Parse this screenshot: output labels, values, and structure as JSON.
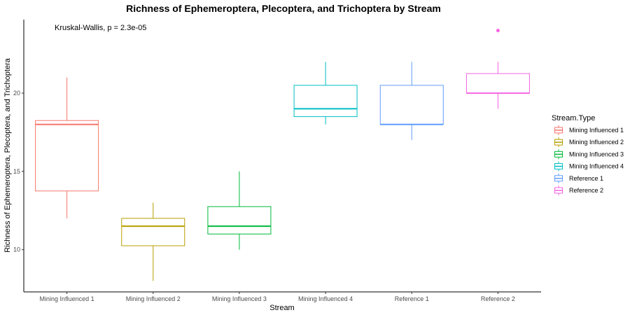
{
  "chart_data": {
    "type": "box",
    "title": "Richness of Ephemeroptera, Plecoptera, and Trichoptera by Stream",
    "xlabel": "Stream",
    "ylabel": "Richness of Ephemeroptera, Plecoptera, and Trichoptera",
    "annotation": "Kruskal-Wallis, p = 2.3e-05",
    "ylim": [
      7.3,
      24.7
    ],
    "yticks": [
      10,
      15,
      20
    ],
    "grid": false,
    "legend": {
      "title": "Stream.Type",
      "placement": "right"
    },
    "series": [
      {
        "name": "Mining Influenced 1",
        "color": "#F8766D",
        "min": 12,
        "q1": 13.75,
        "median": 18,
        "q3": 18.25,
        "max": 21,
        "outliers": []
      },
      {
        "name": "Mining Influenced 2",
        "color": "#B79F00",
        "min": 8,
        "q1": 10.25,
        "median": 11.5,
        "q3": 12,
        "max": 13,
        "outliers": []
      },
      {
        "name": "Mining Influenced 3",
        "color": "#00BA38",
        "min": 10,
        "q1": 11,
        "median": 11.5,
        "q3": 12.75,
        "max": 15,
        "outliers": []
      },
      {
        "name": "Mining Influenced 4",
        "color": "#00BFC4",
        "min": 18,
        "q1": 18.5,
        "median": 19,
        "q3": 20.5,
        "max": 22,
        "outliers": []
      },
      {
        "name": "Reference 1",
        "color": "#619CFF",
        "min": 17,
        "q1": 18,
        "median": 18,
        "q3": 20.5,
        "max": 22,
        "outliers": []
      },
      {
        "name": "Reference 2",
        "color": "#F564E3",
        "min": 19,
        "q1": 20,
        "median": 20,
        "q3": 21.25,
        "max": 22,
        "outliers": [
          24
        ]
      }
    ]
  }
}
